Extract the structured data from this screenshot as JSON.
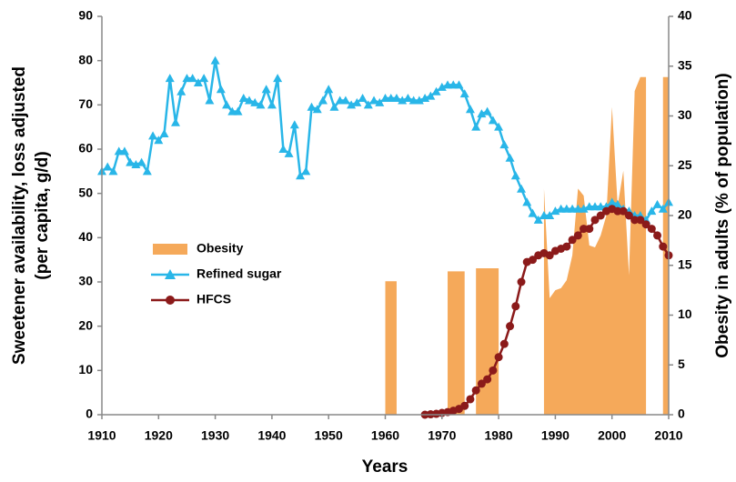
{
  "chart_data": {
    "type": "combo",
    "xlabel": "Years",
    "ylabel": [
      "Sweetener availability, loss adjusted",
      "(per capita, g/d)"
    ],
    "y2label": "Obesity in adults (% of population)",
    "xlim": [
      1910,
      2010
    ],
    "xticks": [
      1910,
      1920,
      1930,
      1940,
      1950,
      1960,
      1970,
      1980,
      1990,
      2000,
      2010
    ],
    "ylim": [
      0,
      90
    ],
    "yticks": [
      0,
      10,
      20,
      30,
      40,
      50,
      60,
      70,
      80,
      90
    ],
    "y2lim": [
      0,
      40
    ],
    "y2ticks": [
      0,
      5,
      10,
      15,
      20,
      25,
      30,
      35,
      40
    ],
    "grid": false,
    "legend": "center left",
    "series": [
      {
        "name": "Obesity",
        "kind": "area",
        "axis": "y2",
        "color": "#f5a95a",
        "x": [
          1960,
          1961,
          1962,
          1963,
          1964,
          1965,
          1966,
          1967,
          1968,
          1969,
          1970,
          1971,
          1972,
          1973,
          1974,
          1975,
          1976,
          1977,
          1978,
          1979,
          1980,
          1981,
          1982,
          1983,
          1984,
          1985,
          1986,
          1987,
          1988,
          1989,
          1990,
          1991,
          1992,
          1993,
          1994,
          1995,
          1996,
          1997,
          1998,
          1999,
          2000,
          2001,
          2002,
          2003,
          2004,
          2005,
          2006,
          2007,
          2008,
          2009,
          2010
        ],
        "values": [
          13.4,
          13.4,
          13.4,
          null,
          null,
          null,
          null,
          null,
          null,
          null,
          null,
          14.4,
          14.4,
          14.4,
          14.4,
          null,
          14.7,
          14.7,
          14.7,
          14.7,
          14.7,
          null,
          null,
          null,
          null,
          null,
          null,
          null,
          22.7,
          11.7,
          12.5,
          12.7,
          13.5,
          16,
          22.7,
          22,
          17,
          16.8,
          18,
          20,
          30.9,
          21,
          24.5,
          14,
          32.5,
          33.9,
          33.9,
          null,
          null,
          33.9,
          33.9
        ]
      },
      {
        "name": "Refined sugar",
        "kind": "line",
        "marker": "triangle",
        "color": "#29b6e8",
        "x": [
          1910,
          1911,
          1912,
          1913,
          1914,
          1915,
          1916,
          1917,
          1918,
          1919,
          1920,
          1921,
          1922,
          1923,
          1924,
          1925,
          1926,
          1927,
          1928,
          1929,
          1930,
          1931,
          1932,
          1933,
          1934,
          1935,
          1936,
          1937,
          1938,
          1939,
          1940,
          1941,
          1942,
          1943,
          1944,
          1945,
          1946,
          1947,
          1948,
          1949,
          1950,
          1951,
          1952,
          1953,
          1954,
          1955,
          1956,
          1957,
          1958,
          1959,
          1960,
          1961,
          1962,
          1963,
          1964,
          1965,
          1966,
          1967,
          1968,
          1969,
          1970,
          1971,
          1972,
          1973,
          1974,
          1975,
          1976,
          1977,
          1978,
          1979,
          1980,
          1981,
          1982,
          1983,
          1984,
          1985,
          1986,
          1987,
          1988,
          1989,
          1990,
          1991,
          1992,
          1993,
          1994,
          1995,
          1996,
          1997,
          1998,
          1999,
          2000,
          2001,
          2002,
          2003,
          2004,
          2005,
          2006,
          2007,
          2008,
          2009,
          2010
        ],
        "values": [
          55,
          56,
          55,
          59.5,
          59.5,
          57,
          56.5,
          57,
          55,
          63,
          62,
          63.5,
          76,
          66,
          73,
          76,
          76,
          75,
          76,
          71,
          80,
          73.5,
          70,
          68.5,
          68.5,
          71.5,
          71,
          70.5,
          70,
          73.5,
          70,
          76,
          60,
          59,
          65.5,
          54,
          55,
          69.5,
          69,
          71,
          73.5,
          69.5,
          71,
          71,
          70,
          70.5,
          71.5,
          70,
          71,
          70.5,
          71.5,
          71.5,
          71.5,
          71,
          71.5,
          71,
          71,
          71.5,
          72,
          73,
          74,
          74.5,
          74.5,
          74.5,
          72.5,
          69,
          65,
          68,
          68.5,
          66.5,
          65,
          61,
          58,
          54,
          51,
          48,
          45.5,
          44,
          45,
          45,
          46,
          46.5,
          46.5,
          46.5,
          46.5,
          46.5,
          47,
          47,
          47,
          47,
          48,
          47.5,
          46.5,
          46,
          45,
          45,
          44,
          46,
          47.5,
          46.5,
          48
        ]
      },
      {
        "name": "HFCS",
        "kind": "line",
        "marker": "circle",
        "color": "#8b1a1a",
        "x": [
          1967,
          1968,
          1969,
          1970,
          1971,
          1972,
          1973,
          1974,
          1975,
          1976,
          1977,
          1978,
          1979,
          1980,
          1981,
          1982,
          1983,
          1984,
          1985,
          1986,
          1987,
          1988,
          1989,
          1990,
          1991,
          1992,
          1993,
          1994,
          1995,
          1996,
          1997,
          1998,
          1999,
          2000,
          2001,
          2002,
          2003,
          2004,
          2005,
          2006,
          2007,
          2008,
          2009,
          2010
        ],
        "values": [
          0,
          0.1,
          0.2,
          0.4,
          0.6,
          0.9,
          1.3,
          2,
          3.5,
          5.5,
          7,
          8,
          10,
          13,
          16,
          20,
          24.5,
          30,
          34.5,
          35,
          36,
          36.5,
          36,
          37,
          37.5,
          38,
          39.5,
          40.5,
          42,
          42,
          44,
          45,
          46,
          46.5,
          46,
          46,
          45,
          44,
          44,
          43,
          42,
          40.5,
          38,
          36
        ]
      }
    ]
  }
}
